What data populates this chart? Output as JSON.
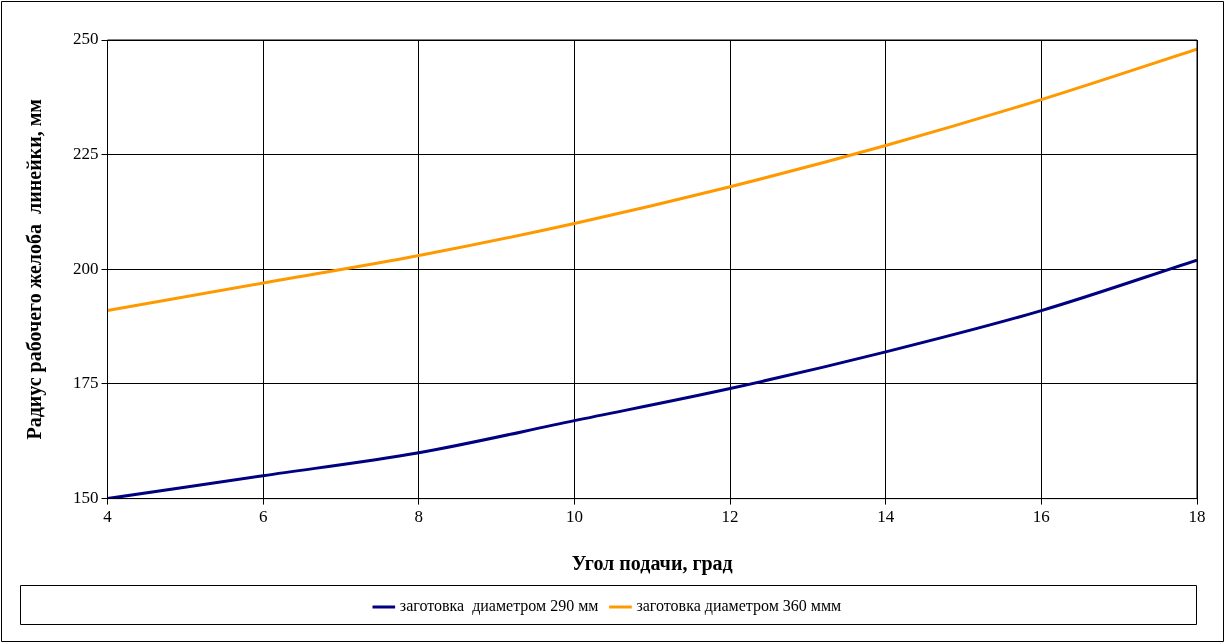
{
  "chart_data": {
    "type": "line",
    "xlabel": "Угол подачи, град",
    "ylabel": "Радиус рабочего желоба  линейки, мм",
    "x": [
      4,
      6,
      8,
      10,
      12,
      14,
      16,
      18
    ],
    "series": [
      {
        "name": "заготовка  диаметром 290 мм",
        "color": "#000080",
        "values": [
          150,
          155,
          160,
          167,
          174,
          182,
          191,
          202
        ]
      },
      {
        "name": "заготовка диаметром 360 ммм",
        "color": "#ff9900",
        "values": [
          191,
          197,
          203,
          210,
          218,
          227,
          237,
          248
        ]
      }
    ],
    "xlim": [
      4,
      18
    ],
    "xticks": [
      4,
      6,
      8,
      10,
      12,
      14,
      16,
      18
    ],
    "ylim": [
      150,
      250
    ],
    "yticks": [
      150,
      175,
      200,
      225,
      250
    ],
    "grid": true,
    "legend": "bottom",
    "marker": "none",
    "line_style": "solid"
  }
}
